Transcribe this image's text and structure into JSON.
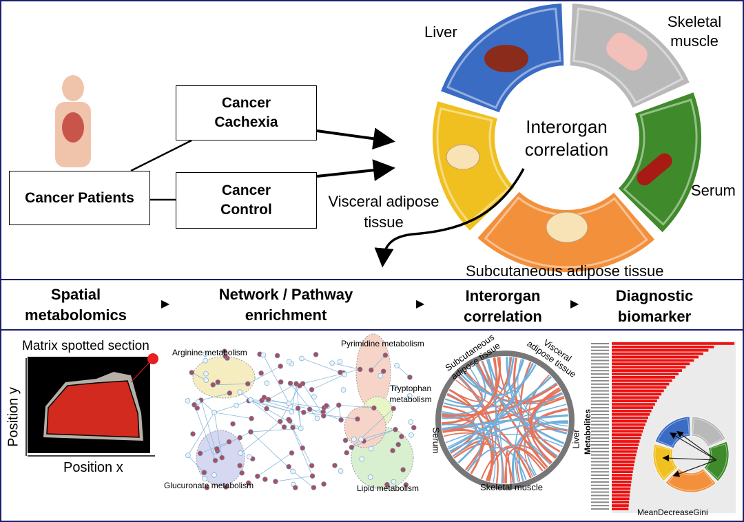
{
  "top": {
    "patients": "Cancer Patients",
    "cachexia": "Cancer Cachexia",
    "control": "Cancer Control",
    "center": "Interorgan correlation",
    "organs": {
      "liver": "Liver",
      "skeletal": "Skeletal muscle",
      "serum": "Serum",
      "subcutaneous": "Subcutaneous adipose tissue",
      "visceral": "Visceral adipose tissue"
    },
    "colors": {
      "liver": "#3b6cc4",
      "skeletal": "#b9b9b9",
      "serum": "#3f8a2a",
      "subcutaneous": "#f3903c",
      "visceral": "#f0c020"
    }
  },
  "steps": [
    "Spatial metabolomics",
    "Network / Pathway enrichment",
    "Interorgan correlation",
    "Diagnostic biomarker"
  ],
  "panel1": {
    "title": "Matrix spotted section",
    "ylabel": "Position y",
    "xlabel": "Position x"
  },
  "panel2": {
    "labels": [
      "Arginine metabolism",
      "Pyrimidine metabolism",
      "Tryptophan metabolism",
      "Glucuronate metabolism",
      "Lipid metabolism"
    ]
  },
  "panel3": {
    "labels": [
      "Subcutaneous adipose tissue",
      "Visceral adipose tissue",
      "Serum",
      "Liver",
      "Skeletal muscle"
    ]
  },
  "panel4": {
    "ylabel": "Metabolites",
    "xlabel": "MeanDecreaseGini"
  }
}
